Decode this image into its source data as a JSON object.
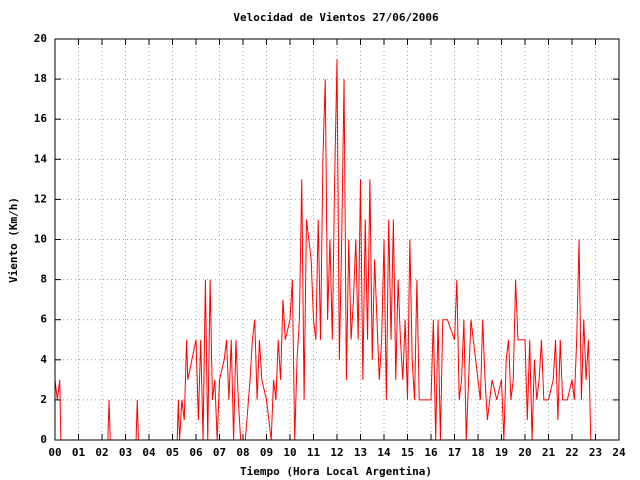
{
  "chart_data": {
    "type": "line",
    "title": "Velocidad de Vientos 27/06/2006",
    "x_label": "Tiempo (Hora Local Argentina)",
    "y_label": "Viento (Km/h)",
    "color": "#ff0000",
    "grid": true,
    "xlim": [
      0,
      24
    ],
    "ylim": [
      0,
      20
    ],
    "xticks": [
      {
        "value": 0,
        "label": "00"
      },
      {
        "value": 1,
        "label": "01"
      },
      {
        "value": 2,
        "label": "02"
      },
      {
        "value": 3,
        "label": "03"
      },
      {
        "value": 4,
        "label": "04"
      },
      {
        "value": 5,
        "label": "05"
      },
      {
        "value": 6,
        "label": "06"
      },
      {
        "value": 7,
        "label": "07"
      },
      {
        "value": 8,
        "label": "08"
      },
      {
        "value": 9,
        "label": "09"
      },
      10,
      11,
      12,
      13,
      14,
      15,
      16,
      17,
      18,
      19,
      20,
      21,
      22,
      23,
      24
    ],
    "yticks": [
      0,
      2,
      4,
      6,
      8,
      10,
      12,
      14,
      16,
      18,
      20
    ],
    "x": [
      0,
      0.1,
      0.2,
      0.25,
      2.25,
      2.3,
      2.35,
      3.45,
      3.5,
      3.55,
      5.2,
      5.25,
      5.3,
      5.4,
      5.5,
      5.6,
      5.65,
      6,
      6.1,
      6.2,
      6.3,
      6.4,
      6.5,
      6.6,
      6.7,
      6.8,
      6.9,
      7,
      7.2,
      7.3,
      7.4,
      7.5,
      7.6,
      7.7,
      7.8,
      7.9,
      8.1,
      8.3,
      8.4,
      8.5,
      8.6,
      8.7,
      8.8,
      9,
      9.2,
      9.3,
      9.4,
      9.5,
      9.6,
      9.7,
      9.8,
      10,
      10.1,
      10.2,
      10.3,
      10.4,
      10.5,
      10.6,
      10.7,
      10.9,
      11,
      11.1,
      11.2,
      11.3,
      11.4,
      11.5,
      11.6,
      11.7,
      11.8,
      11.9,
      12,
      12.1,
      12.2,
      12.3,
      12.4,
      12.5,
      12.6,
      12.7,
      12.8,
      12.9,
      13,
      13.1,
      13.2,
      13.3,
      13.4,
      13.5,
      13.6,
      13.7,
      13.8,
      13.9,
      14,
      14.1,
      14.2,
      14.3,
      14.4,
      14.5,
      14.6,
      14.7,
      14.8,
      14.9,
      15,
      15.1,
      15.2,
      15.3,
      15.4,
      15.5,
      16,
      16.1,
      16.2,
      16.3,
      16.4,
      16.5,
      16.7,
      17,
      17.1,
      17.2,
      17.3,
      17.4,
      17.5,
      17.6,
      17.7,
      18,
      18.1,
      18.2,
      18.3,
      18.4,
      18.6,
      18.8,
      19,
      19.1,
      19.2,
      19.3,
      19.4,
      19.5,
      19.6,
      19.7,
      20,
      20.1,
      20.2,
      20.3,
      20.4,
      20.5,
      20.6,
      20.7,
      20.8,
      21,
      21.2,
      21.3,
      21.4,
      21.5,
      21.6,
      21.8,
      22,
      22.1,
      22.2,
      22.3,
      22.4,
      22.5,
      22.6,
      22.7,
      22.8
    ],
    "values": [
      3,
      2,
      3,
      0,
      0,
      2,
      0,
      0,
      2,
      0,
      0,
      2,
      0,
      2,
      1,
      5,
      3,
      5,
      1,
      5,
      0,
      8,
      0,
      8,
      2,
      3,
      0,
      3,
      4,
      5,
      2,
      5,
      0,
      5,
      2,
      0,
      0,
      3,
      5,
      6,
      2,
      5,
      3,
      2,
      0,
      3,
      2,
      5,
      3,
      7,
      5,
      6,
      8,
      0,
      4,
      6,
      13,
      2,
      11,
      9,
      6,
      5,
      11,
      5,
      14,
      18,
      6,
      10,
      5,
      13,
      19,
      4,
      10,
      18,
      3,
      10,
      5,
      7,
      10,
      5,
      13,
      3,
      11,
      5,
      13,
      4,
      9,
      6,
      3,
      5,
      10,
      2,
      11,
      5,
      11,
      3,
      8,
      5,
      3,
      6,
      2,
      10,
      4,
      2,
      8,
      2,
      2,
      6,
      0,
      6,
      0,
      6,
      6,
      5,
      8,
      2,
      3,
      6,
      0,
      3,
      6,
      3,
      2,
      6,
      3,
      1,
      3,
      2,
      3,
      0,
      4,
      5,
      2,
      3,
      8,
      5,
      5,
      1,
      5,
      0,
      4,
      2,
      3,
      5,
      2,
      2,
      3,
      5,
      1,
      5,
      2,
      2,
      3,
      2,
      5,
      10,
      2,
      6,
      3,
      5,
      0
    ]
  }
}
